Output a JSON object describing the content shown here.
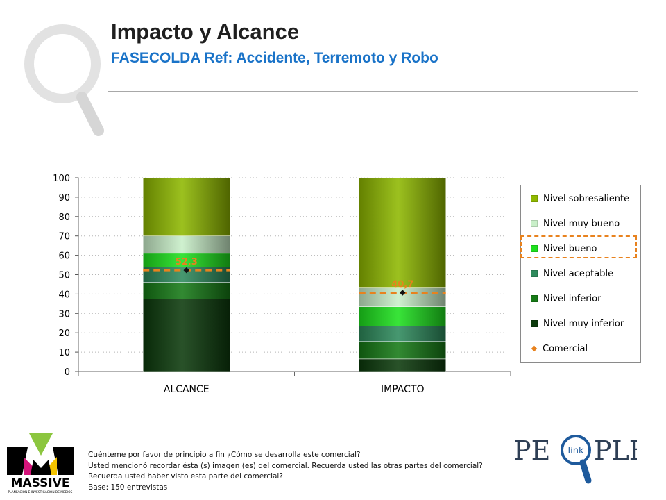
{
  "header": {
    "title": "Impacto y Alcance",
    "subtitle": "FASECOLDA Ref: Accidente, Terremoto y Robo"
  },
  "chart_data": {
    "type": "bar",
    "stacked": true,
    "categories": [
      "ALCANCE",
      "IMPACTO"
    ],
    "series": [
      {
        "name": "Nivel muy inferior",
        "values": [
          37.5,
          6.5
        ],
        "color": "#0c3a0c"
      },
      {
        "name": "Nivel inferior",
        "values": [
          8.5,
          9.0
        ],
        "color": "#167a16"
      },
      {
        "name": "Nivel aceptable",
        "values": [
          8.0,
          8.0
        ],
        "color": "#2e8a5c"
      },
      {
        "name": "Nivel bueno",
        "values": [
          7.0,
          10.0
        ],
        "color": "#1ee01e"
      },
      {
        "name": "Nivel muy bueno",
        "values": [
          9.0,
          10.0
        ],
        "color": "#c9efc9"
      },
      {
        "name": "Nivel sobresaliente",
        "values": [
          30.0,
          56.5
        ],
        "color": "#8fb800"
      }
    ],
    "markers": {
      "name": "Comercial",
      "values": [
        52.3,
        40.7
      ],
      "labels": [
        "52,3",
        "40,7"
      ],
      "color": "#e8821e"
    },
    "ylim": [
      0,
      100
    ],
    "yticks": [
      "0",
      "10",
      "20",
      "30",
      "40",
      "50",
      "60",
      "70",
      "80",
      "90",
      "100"
    ],
    "grid": true,
    "legend_position": "right",
    "legend_order": [
      "Nivel sobresaliente",
      "Nivel muy bueno",
      "Nivel bueno",
      "Nivel aceptable",
      "Nivel inferior",
      "Nivel muy inferior",
      "Comercial"
    ],
    "legend_highlight": "Nivel bueno"
  },
  "notes": {
    "line1": "Cuénteme por favor de principio a fin ¿Cómo se desarrolla este comercial?",
    "line2": "Usted mencionó recordar ésta (s) imagen (es) del comercial. Recuerda usted las otras partes del comercial?",
    "line3": "Recuerda usted haber visto esta parte del comercial?",
    "line4": "Base: 150 entrevistas"
  },
  "logos": {
    "left_name": "MASSIVE",
    "left_tagline": "PLANEACIÓN E INVESTIGACIÓN DE MEDIOS",
    "right_name_left": "PE",
    "right_name_right": "PLE",
    "right_badge": "link"
  },
  "icons": {
    "background": "magnifier-icon"
  }
}
